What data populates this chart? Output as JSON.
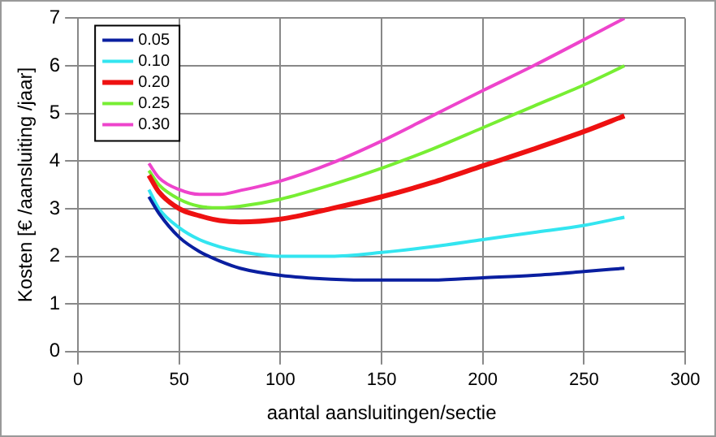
{
  "chart_data": {
    "type": "line",
    "xlabel": "aantal aansluitingen/sectie",
    "ylabel": "Kosten [€ /aansluiting /jaar]",
    "x": [
      35,
      40,
      50,
      60,
      70,
      80,
      100,
      125,
      150,
      175,
      200,
      225,
      250,
      270
    ],
    "xlim": [
      0,
      300
    ],
    "xticks": [
      0,
      50,
      100,
      150,
      200,
      250,
      300
    ],
    "ylim": [
      0,
      7
    ],
    "yticks": [
      0,
      1,
      2,
      3,
      4,
      5,
      6,
      7
    ],
    "grid": true,
    "legend": "top left",
    "marker": "none",
    "line_style": "solid",
    "series": [
      {
        "name": "0.05",
        "color": "#0a1fa0",
        "values": [
          3.25,
          2.9,
          2.4,
          2.1,
          1.9,
          1.75,
          1.6,
          1.52,
          1.5,
          1.5,
          1.55,
          1.6,
          1.68,
          1.75
        ]
      },
      {
        "name": "0.10",
        "color": "#33e5f0",
        "values": [
          3.4,
          3.0,
          2.6,
          2.35,
          2.2,
          2.1,
          2.0,
          2.0,
          2.08,
          2.2,
          2.35,
          2.5,
          2.65,
          2.82
        ]
      },
      {
        "name": "0.20",
        "color": "#ee1111",
        "values": [
          3.7,
          3.35,
          3.0,
          2.85,
          2.75,
          2.72,
          2.78,
          3.0,
          3.25,
          3.55,
          3.9,
          4.25,
          4.62,
          4.95
        ]
      },
      {
        "name": "0.25",
        "color": "#77ee33",
        "values": [
          3.8,
          3.5,
          3.2,
          3.05,
          3.02,
          3.05,
          3.2,
          3.5,
          3.85,
          4.25,
          4.7,
          5.15,
          5.6,
          6.0
        ]
      },
      {
        "name": "0.30",
        "color": "#ee44cc",
        "values": [
          3.95,
          3.65,
          3.4,
          3.3,
          3.3,
          3.38,
          3.58,
          3.95,
          4.42,
          4.95,
          5.48,
          6.0,
          6.55,
          7.0
        ]
      }
    ]
  }
}
